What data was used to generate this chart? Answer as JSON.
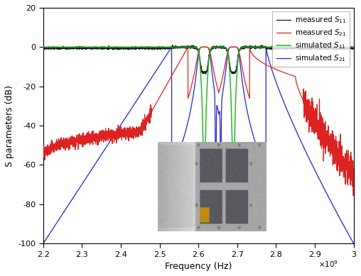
{
  "xlim": [
    2200000000.0,
    3000000000.0
  ],
  "ylim": [
    -100,
    20
  ],
  "xticks": [
    2200000000.0,
    2300000000.0,
    2400000000.0,
    2500000000.0,
    2600000000.0,
    2700000000.0,
    2800000000.0,
    2900000000.0,
    3000000000.0
  ],
  "xtick_labels": [
    "2.2",
    "2.3",
    "2.4",
    "2.5",
    "2.6",
    "2.7",
    "2.8",
    "2.9",
    "3"
  ],
  "yticks": [
    -100,
    -80,
    -60,
    -40,
    -20,
    0,
    20
  ],
  "xlabel": "Frequency (Hz)",
  "ylabel": "S parameters (dB)",
  "colors": {
    "measured_s11": "#1a1a1a",
    "measured_s21": "#dd2222",
    "simulated_s11": "#22bb22",
    "simulated_s21": "#2222cc"
  },
  "background_color": "#ffffff",
  "figsize": [
    5.08,
    3.89
  ],
  "dpi": 100,
  "f1": 2615000000.0,
  "f2": 2690000000.0,
  "BW1": 28000000.0,
  "BW2": 28000000.0
}
